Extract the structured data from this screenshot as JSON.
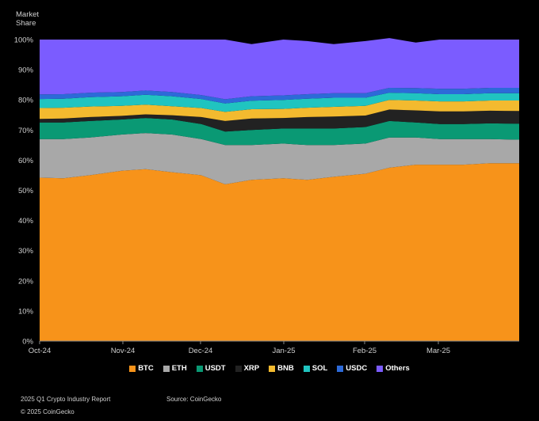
{
  "ylabel_lines": [
    "Market",
    "Share"
  ],
  "footer": {
    "report": "2025 Q1 Crypto Industry Report",
    "source": "Source: CoinGecko",
    "copyright": "© 2025 CoinGecko"
  },
  "chart_data": {
    "type": "area",
    "stacked": true,
    "ylabel": "Market Share",
    "ylim": [
      0,
      100
    ],
    "yticks": [
      "0%",
      "10%",
      "20%",
      "30%",
      "40%",
      "50%",
      "60%",
      "70%",
      "80%",
      "90%",
      "100%"
    ],
    "xticks": [
      "Oct-24",
      "Nov-24",
      "Dec-24",
      "Jan-25",
      "Feb-25",
      "Mar-25"
    ],
    "x": [
      "2024-10-01",
      "2024-10-10",
      "2024-10-20",
      "2024-11-01",
      "2024-11-10",
      "2024-11-20",
      "2024-12-01",
      "2024-12-10",
      "2024-12-20",
      "2025-01-01",
      "2025-01-10",
      "2025-01-20",
      "2025-02-01",
      "2025-02-10",
      "2025-02-20",
      "2025-03-01",
      "2025-03-10",
      "2025-03-20",
      "2025-03-31"
    ],
    "series": [
      {
        "name": "BTC",
        "color": "#f7931a",
        "values": [
          54.2,
          54.0,
          55.0,
          56.5,
          57.0,
          56.0,
          55.0,
          52.0,
          53.5,
          54.0,
          53.5,
          54.5,
          55.5,
          57.5,
          58.5,
          58.5,
          58.5,
          59.0,
          59.0
        ]
      },
      {
        "name": "ETH",
        "color": "#a8a8a8",
        "values": [
          12.8,
          13.0,
          12.5,
          12.0,
          12.0,
          12.5,
          12.0,
          13.0,
          11.5,
          11.5,
          11.5,
          10.5,
          10.0,
          10.0,
          9.0,
          8.5,
          8.5,
          8.0,
          7.8
        ]
      },
      {
        "name": "USDT",
        "color": "#0a9974",
        "values": [
          5.5,
          5.5,
          5.5,
          5.0,
          5.0,
          5.0,
          5.0,
          4.5,
          5.0,
          5.0,
          5.5,
          5.5,
          5.5,
          5.5,
          5.0,
          5.0,
          5.0,
          5.2,
          5.3
        ]
      },
      {
        "name": "XRP",
        "color": "#222222",
        "values": [
          1.2,
          1.3,
          1.3,
          1.2,
          1.2,
          1.4,
          2.3,
          3.5,
          3.8,
          3.5,
          3.8,
          4.0,
          3.8,
          3.8,
          4.0,
          4.2,
          4.2,
          4.2,
          4.2
        ]
      },
      {
        "name": "BNB",
        "color": "#f3ba2f",
        "values": [
          3.6,
          3.6,
          3.5,
          3.3,
          3.2,
          3.0,
          3.0,
          3.0,
          3.1,
          3.0,
          3.1,
          3.2,
          3.2,
          3.2,
          3.3,
          3.3,
          3.3,
          3.4,
          3.5
        ]
      },
      {
        "name": "SOL",
        "color": "#20c4c0",
        "values": [
          3.0,
          3.0,
          3.1,
          3.2,
          3.3,
          3.3,
          3.0,
          2.8,
          2.8,
          3.0,
          3.0,
          3.0,
          2.7,
          2.4,
          2.4,
          2.4,
          2.4,
          2.4,
          2.4
        ]
      },
      {
        "name": "USDC",
        "color": "#2d6ad8",
        "values": [
          1.5,
          1.5,
          1.5,
          1.4,
          1.4,
          1.4,
          1.3,
          1.4,
          1.5,
          1.5,
          1.5,
          1.5,
          1.5,
          1.6,
          1.7,
          1.8,
          1.8,
          1.8,
          1.8
        ]
      },
      {
        "name": "Others",
        "color": "#7b5cff",
        "values": [
          18.2,
          18.1,
          17.6,
          17.4,
          16.9,
          17.4,
          18.4,
          19.8,
          17.3,
          18.5,
          17.6,
          16.3,
          17.3,
          16.5,
          15.1,
          16.3,
          16.3,
          16.0,
          16.0
        ]
      }
    ]
  }
}
